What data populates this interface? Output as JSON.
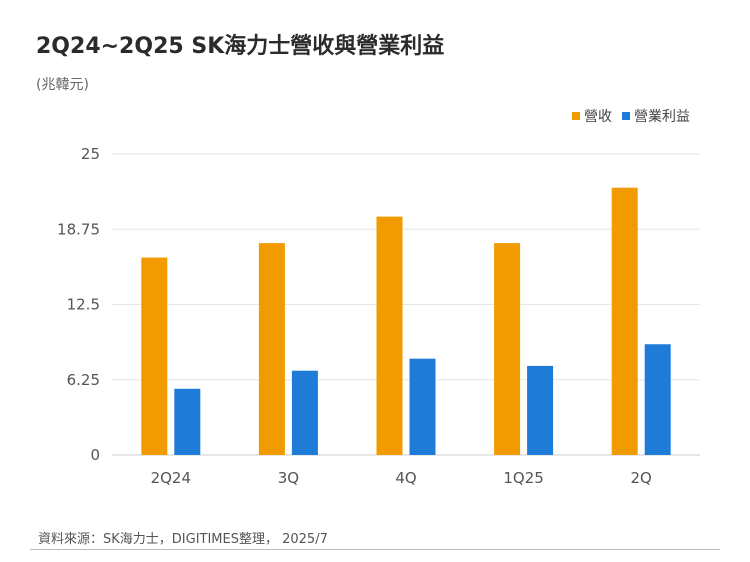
{
  "header": {
    "title": "2Q24~2Q25 SK海力士營收與營業利益",
    "unit": "(兆韓元)"
  },
  "footer": {
    "source": "資料來源：SK海力士，DIGITIMES整理， 2025/7"
  },
  "colors": {
    "revenue": "#F29B00",
    "operating_profit": "#1E7BD8",
    "grid": "#e6e6e6",
    "axis_text": "#555555"
  },
  "chart_data": {
    "type": "bar",
    "categories": [
      "2Q24",
      "3Q",
      "4Q",
      "1Q25",
      "2Q"
    ],
    "series": [
      {
        "name": "營收",
        "values": [
          16.4,
          17.6,
          19.8,
          17.6,
          22.2
        ]
      },
      {
        "name": "營業利益",
        "values": [
          5.5,
          7.0,
          8.0,
          7.4,
          9.2
        ]
      }
    ],
    "y_ticks": [
      "0",
      "6.25",
      "12.5",
      "18.75",
      "25"
    ],
    "ylim": [
      0,
      25
    ],
    "grid": true,
    "legend_position": "top-right"
  }
}
